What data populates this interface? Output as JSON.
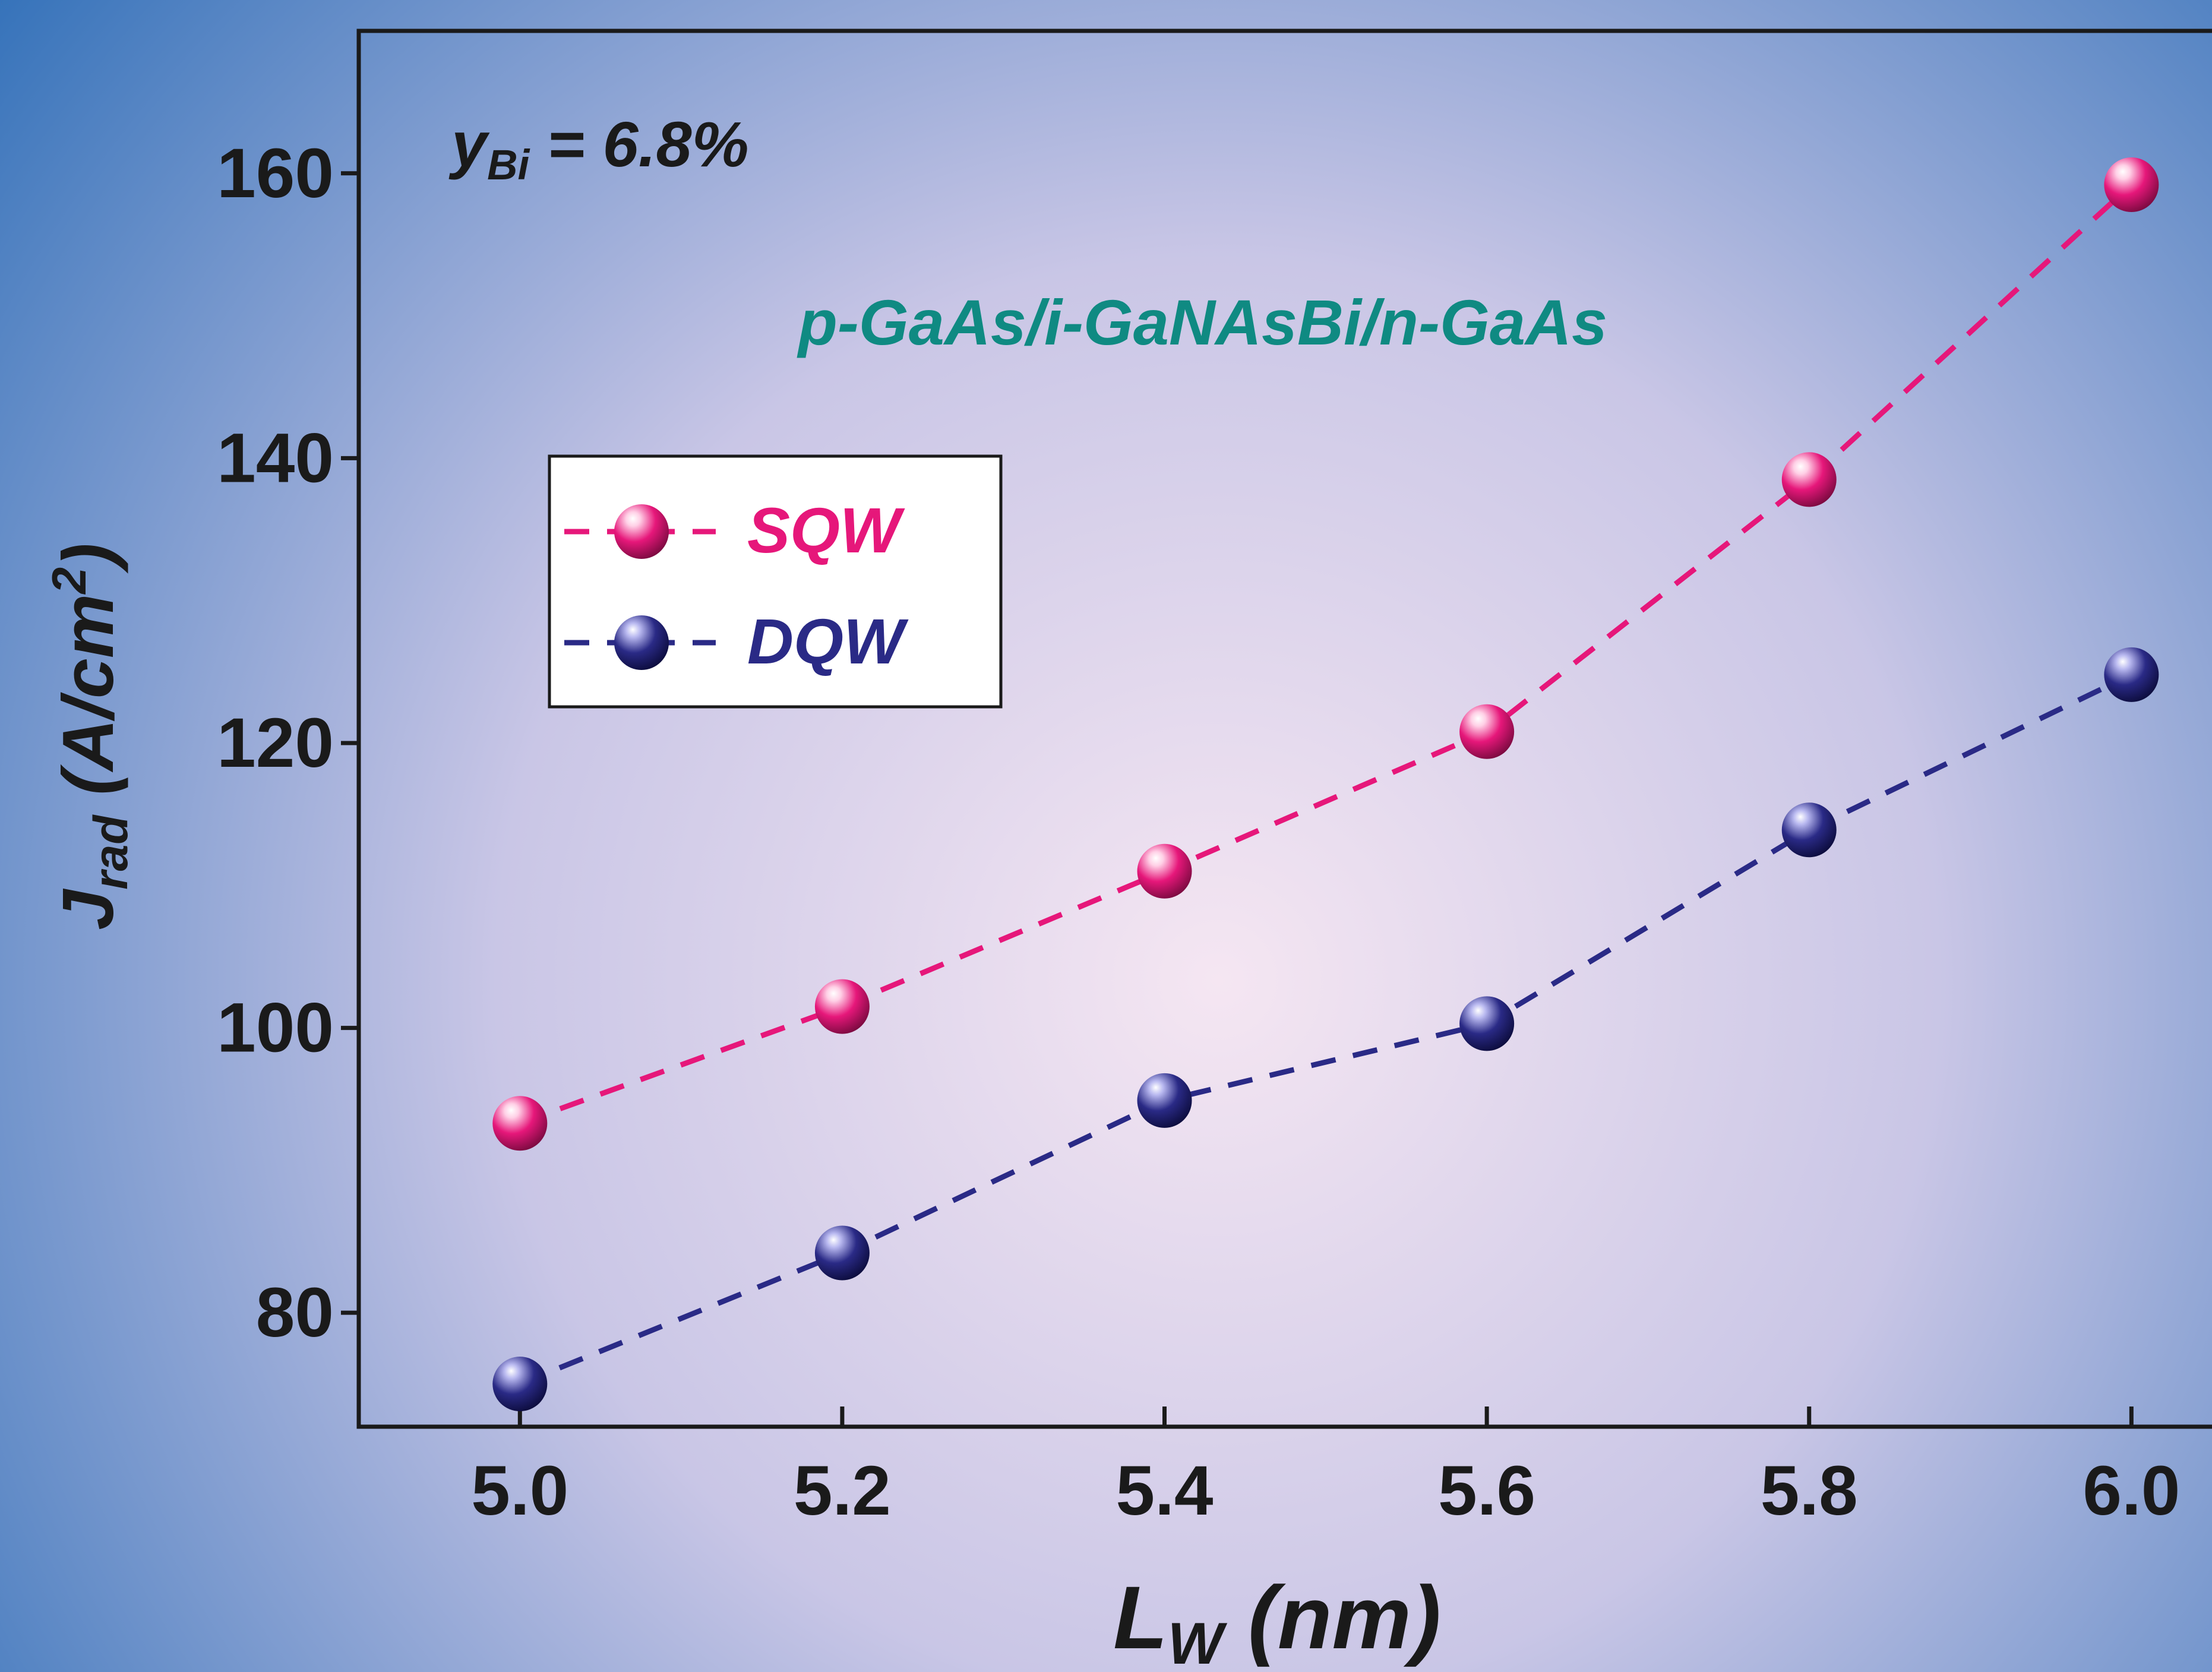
{
  "background": {
    "center_color": "#f5e6f2",
    "mid_color": "#c9c6e6",
    "edge_color": "#2f6fb8"
  },
  "colors": {
    "sqw": "#e6177a",
    "dqw": "#2a2a86",
    "annotation": "#0f8a82",
    "axis": "#1a1a1a"
  },
  "annotations": {
    "composition": {
      "var": "y",
      "sub": "Bi",
      "rest": " = 6.8%"
    },
    "structure": "p-GaAs/i-GaNAsBi/n-GaAs"
  },
  "chart_data": {
    "type": "line",
    "xlabel": {
      "main": "L",
      "sub": "W",
      "rest": " (nm)"
    },
    "ylabel": {
      "main": "J",
      "sub": "rad",
      "rest": " (A/cm",
      "sup": "2",
      "close": ")"
    },
    "x_ticks": [
      "5.0",
      "5.2",
      "5.4",
      "5.6",
      "5.8",
      "6.0"
    ],
    "y_ticks": [
      "80",
      "100",
      "120",
      "140",
      "160"
    ],
    "xlim": [
      4.9,
      6.05
    ],
    "ylim": [
      72,
      170
    ],
    "x": [
      5.0,
      5.2,
      5.4,
      5.6,
      5.8,
      6.0
    ],
    "series": [
      {
        "name": "SQW",
        "values": [
          93.3,
          101.5,
          111.0,
          120.8,
          138.5,
          159.2
        ],
        "color": "#e6177a"
      },
      {
        "name": "DQW",
        "values": [
          75.0,
          84.2,
          94.9,
          100.3,
          113.9,
          124.8
        ],
        "color": "#2a2a86"
      }
    ],
    "line_style": "dashed",
    "marker": "sphere",
    "grid": false,
    "legend_position": "upper-left"
  }
}
